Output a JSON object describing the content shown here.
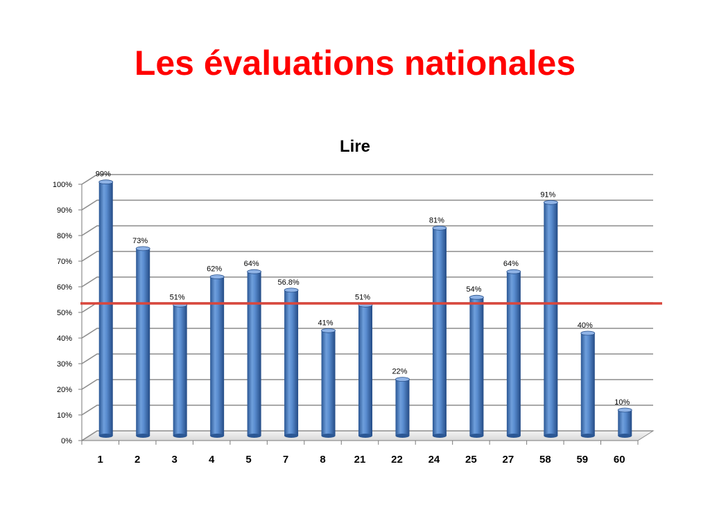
{
  "page": {
    "title": "Les évaluations nationales"
  },
  "chart_data": {
    "type": "bar",
    "title": "Lire",
    "xlabel": "",
    "ylabel": "",
    "categories": [
      "1",
      "2",
      "3",
      "4",
      "5",
      "7",
      "8",
      "21",
      "22",
      "24",
      "25",
      "27",
      "58",
      "59",
      "60"
    ],
    "values": [
      99,
      73,
      51,
      62,
      64,
      56.8,
      41,
      51,
      22,
      81,
      54,
      64,
      91,
      40,
      10
    ],
    "data_labels": [
      "99%",
      "73%",
      "51%",
      "62%",
      "64%",
      "56.8%",
      "41%",
      "51%",
      "22%",
      "81%",
      "54%",
      "64%",
      "91%",
      "40%",
      "10%"
    ],
    "ylim": [
      0,
      100
    ],
    "yticks": [
      0,
      10,
      20,
      30,
      40,
      50,
      60,
      70,
      80,
      90,
      100
    ],
    "ytick_labels": [
      "0%",
      "10%",
      "20%",
      "30%",
      "40%",
      "50%",
      "60%",
      "70%",
      "80%",
      "90%",
      "100%"
    ],
    "reference_line": {
      "value": 50,
      "color": "#d9463c"
    },
    "grid": true,
    "legend": "none",
    "bar_color": "#4a7ec2",
    "bar_color_dark": "#264f8a",
    "bar_color_light": "#8fb3e6"
  }
}
